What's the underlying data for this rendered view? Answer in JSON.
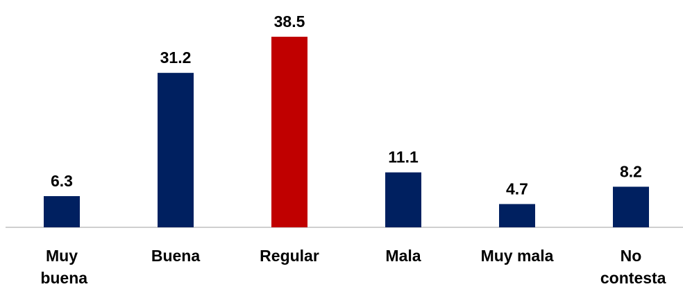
{
  "chart_data": {
    "type": "bar",
    "categories": [
      "Muy buena",
      "Buena",
      "Regular",
      "Mala",
      "Muy mala",
      "No contesta"
    ],
    "values": [
      6.3,
      31.2,
      38.5,
      11.1,
      4.7,
      8.2
    ],
    "colors": [
      "#002060",
      "#002060",
      "#c00000",
      "#002060",
      "#002060",
      "#002060"
    ]
  }
}
